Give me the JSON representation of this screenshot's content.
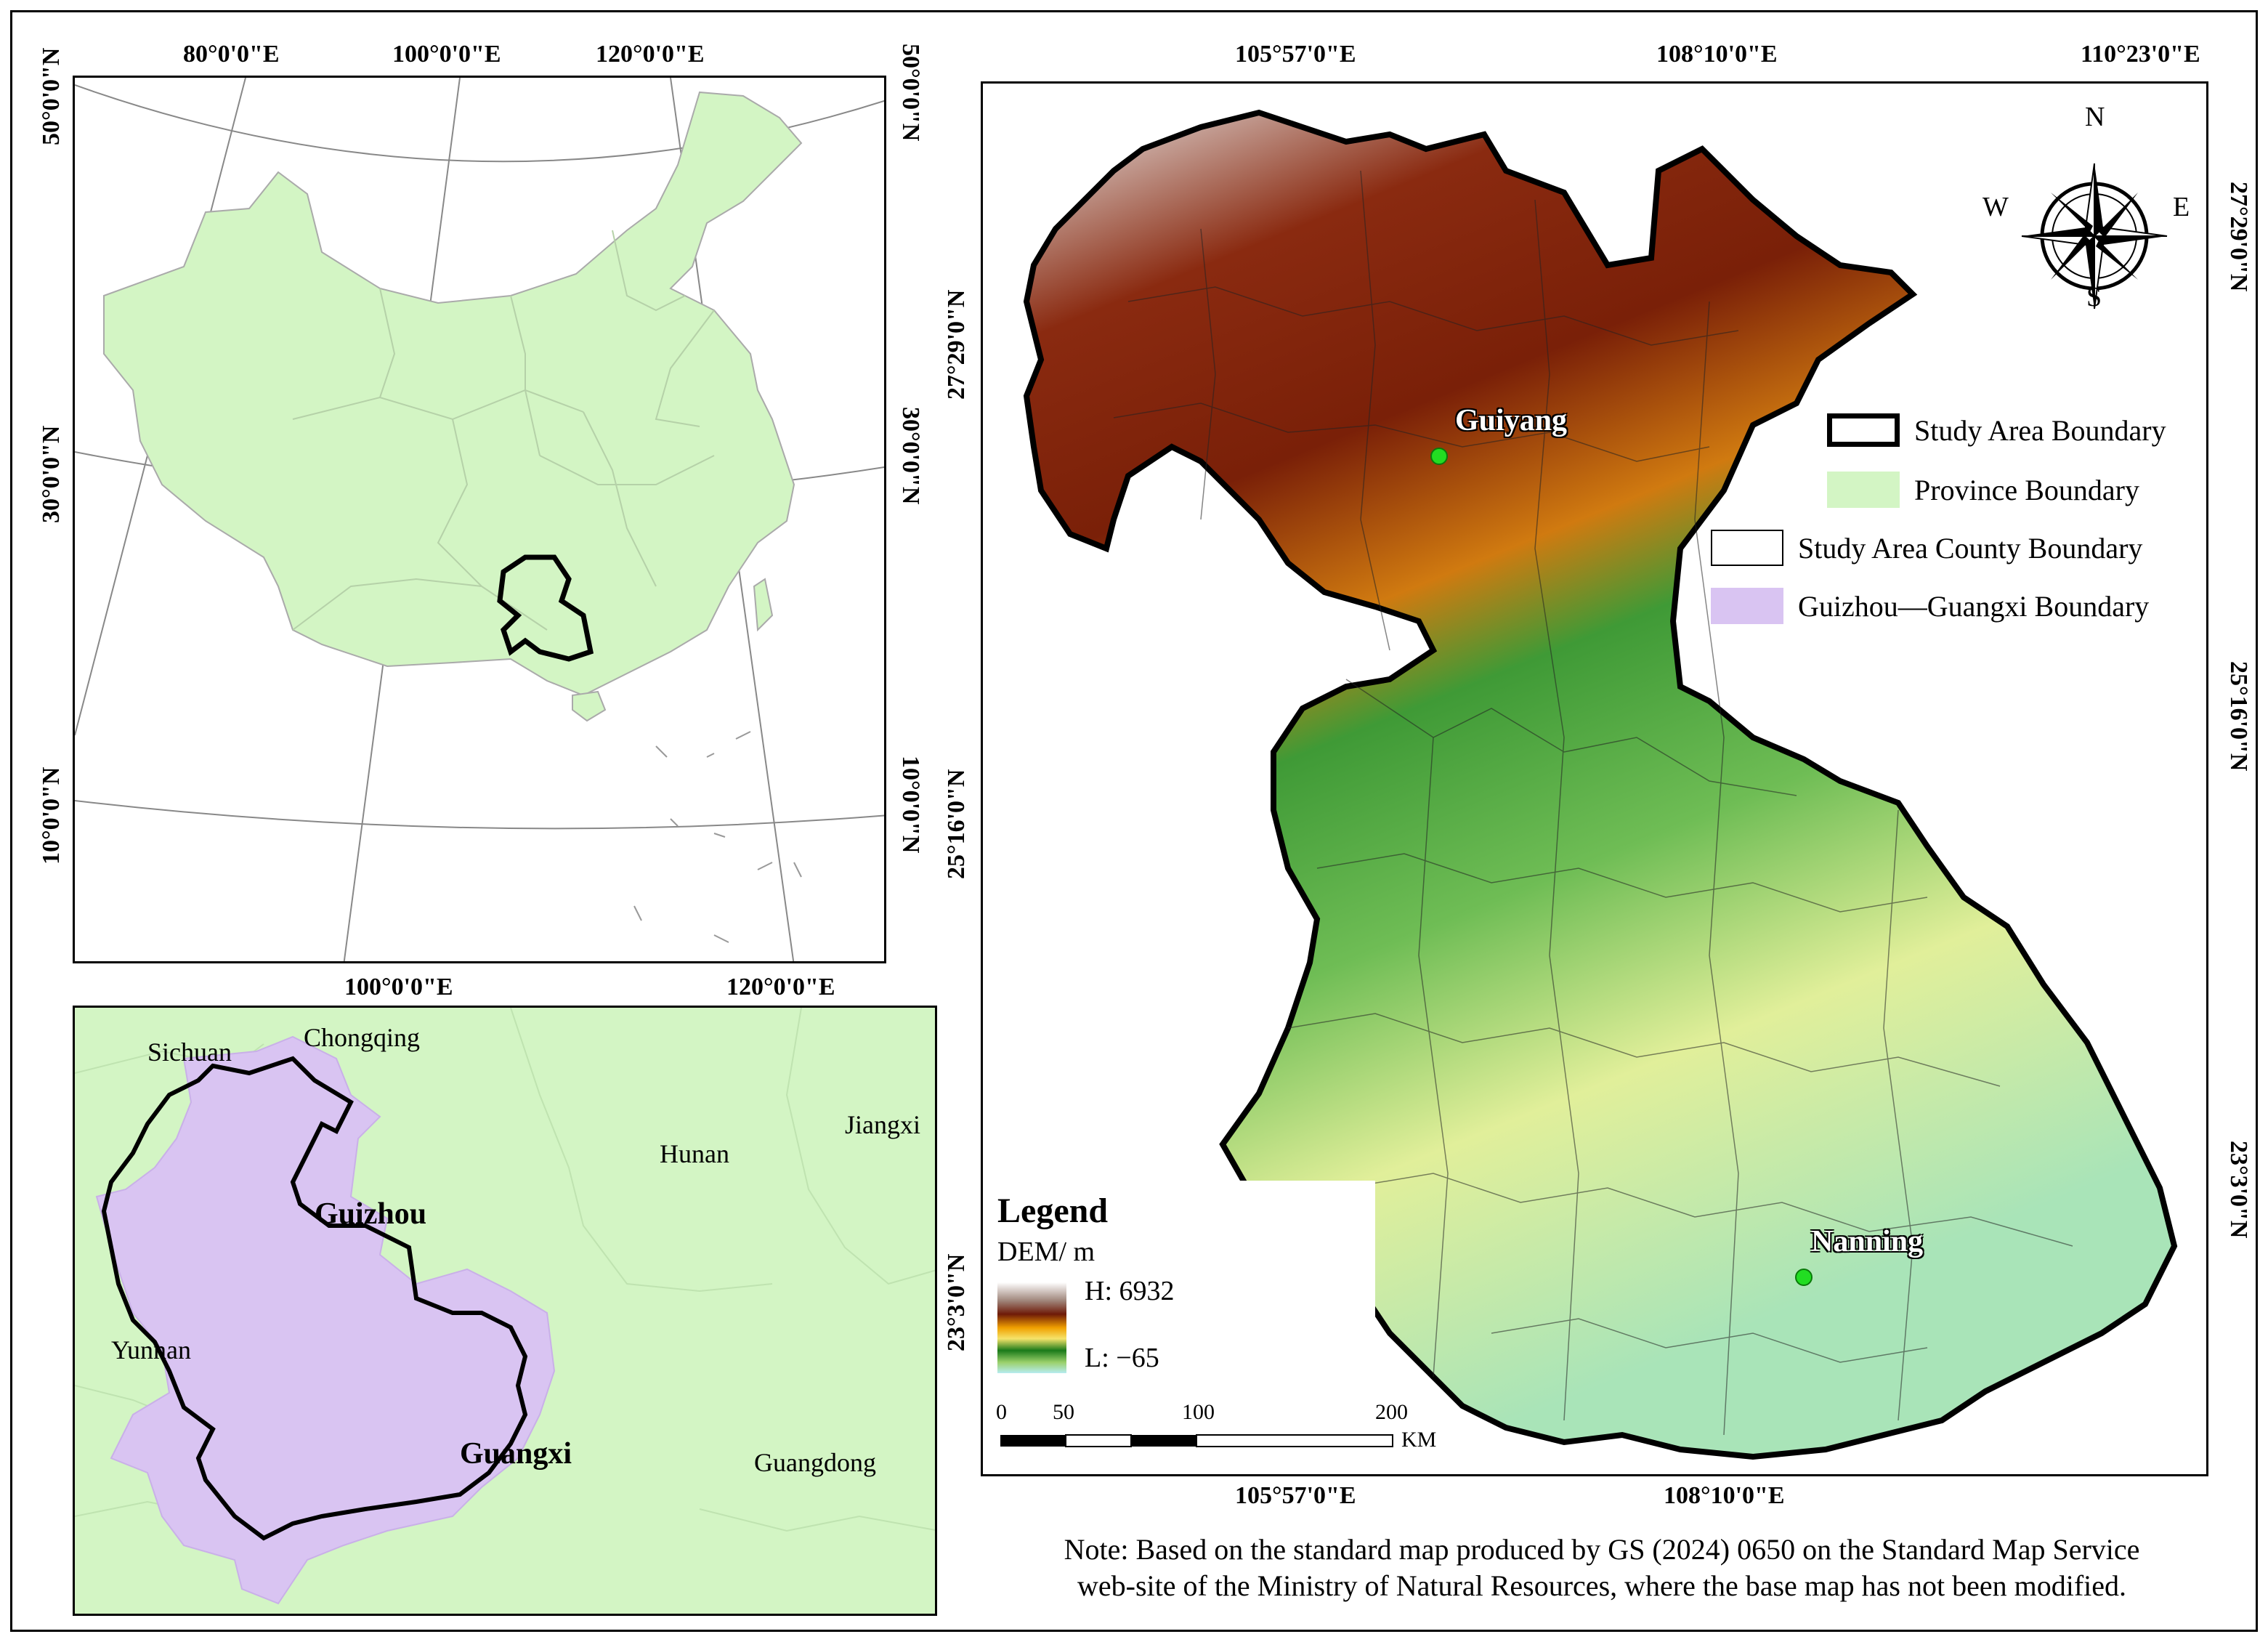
{
  "overview_map": {
    "top_lon_labels": [
      "80°0'0\"E",
      "100°0'0\"E",
      "120°0'0\"E"
    ],
    "bottom_lon_labels": [
      "100°0'0\"E",
      "120°0'0\"E"
    ],
    "left_lat_labels": [
      "50°0'0\"N",
      "30°0'0\"N",
      "10°0'0\"N"
    ],
    "right_lat_labels": [
      "50°0'0\"N",
      "30°0'0\"N",
      "10°0'0\"N"
    ],
    "land_color": "#d3f5c4"
  },
  "inset_map": {
    "provinces": {
      "sichuan": "Sichuan",
      "chongqing": "Chongqing",
      "hunan": "Hunan",
      "jiangxi": "Jiangxi",
      "guizhou": "Guizhou",
      "yunnan": "Yunnan",
      "guangxi": "Guangxi",
      "guangdong": "Guangdong"
    },
    "land_color": "#d3f5c4",
    "study_color": "#d9c4f2"
  },
  "main_map": {
    "top_lon_labels": [
      "105°57'0\"E",
      "108°10'0\"E",
      "110°23'0\"E"
    ],
    "bottom_lon_labels": [
      "105°57'0\"E",
      "108°10'0\"E"
    ],
    "left_lat_labels": [
      "27°29'0\"N",
      "25°16'0\"N",
      "23°3'0\"N"
    ],
    "right_lat_labels": [
      "27°29'0\"N",
      "25°16'0\"N",
      "23°3'0\"N"
    ],
    "cities": {
      "guiyang": "Guiyang",
      "nanning": "Nanning"
    },
    "compass": {
      "n": "N",
      "s": "S",
      "e": "E",
      "w": "W"
    },
    "legend_items": [
      "Study Area Boundary",
      "Province Boundary",
      "Study Area County Boundary",
      "Guizhou—Guangxi Boundary"
    ],
    "dem_legend": {
      "title": "Legend",
      "unit": "DEM/ m",
      "high": "H:  6932",
      "low": "L:  −65"
    },
    "scale": {
      "ticks": [
        "0",
        "50",
        "100",
        "200"
      ],
      "unit": "KM"
    },
    "colors": {
      "province_swatch": "#d3f5c4",
      "gx_swatch": "#d9c4f2",
      "city_dot": "#22dd22"
    }
  },
  "note": {
    "line1": "Note: Based on the standard map produced by GS (2024) 0650 on the Standard Map Service",
    "line2": "web-site of the Ministry of Natural Resources, where the base map has not been modified."
  }
}
